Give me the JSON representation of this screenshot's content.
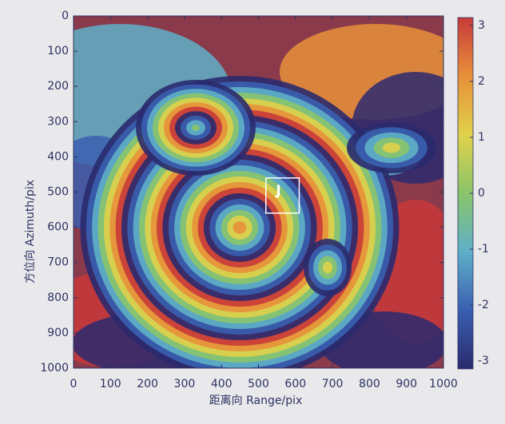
{
  "chart_data": {
    "type": "image",
    "xlabel": "距离向 Range/pix",
    "ylabel": "方位向 Azimuth/pix",
    "xlim": [
      0,
      1000
    ],
    "ylim": [
      1000,
      0
    ],
    "xticks": [
      0,
      100,
      200,
      300,
      400,
      500,
      600,
      700,
      800,
      900,
      1000
    ],
    "yticks": [
      0,
      100,
      200,
      300,
      400,
      500,
      600,
      700,
      800,
      900,
      1000
    ],
    "clim": [
      -3.14,
      3.14
    ],
    "cticks": [
      -3,
      -2,
      -1,
      0,
      1,
      2,
      3
    ],
    "colormap": [
      "#2a2a6e",
      "#3a5fb0",
      "#5fb0c8",
      "#8ac46a",
      "#e0d24a",
      "#e8903a",
      "#c83a3a"
    ],
    "annotations": [
      {
        "text": "J",
        "x": [
          520,
          610
        ],
        "y": [
          460,
          560
        ]
      }
    ]
  }
}
